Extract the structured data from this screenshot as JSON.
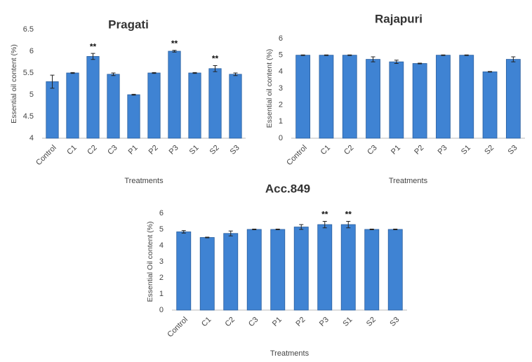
{
  "chart_data": [
    {
      "type": "bar",
      "title": "Pragati",
      "x_label": "Treatments",
      "y_label": "Essential oil content (%)",
      "categories": [
        "Control",
        "C1",
        "C2",
        "C3",
        "P1",
        "P2",
        "P3",
        "S1",
        "S2",
        "S3"
      ],
      "values": [
        5.3,
        5.5,
        5.88,
        5.47,
        5.0,
        5.5,
        6.0,
        5.5,
        5.6,
        5.47
      ],
      "errors": [
        0.15,
        0.01,
        0.07,
        0.03,
        0.01,
        0.01,
        0.02,
        0.01,
        0.07,
        0.03
      ],
      "color": "#3f83d3",
      "ylim": [
        4,
        6.5
      ],
      "yticks": [
        4,
        4.5,
        5,
        5.5,
        6,
        6.5
      ],
      "grid": false,
      "annotations": [
        {
          "text": "**",
          "category": "C2"
        },
        {
          "text": "**",
          "category": "P3"
        },
        {
          "text": "**",
          "category": "S2"
        }
      ]
    },
    {
      "type": "bar",
      "title": "Rajapuri",
      "x_label": "Treatments",
      "y_label": "Essential oil content (%)",
      "categories": [
        "Control",
        "C1",
        "C2",
        "C3",
        "P1",
        "P2",
        "P3",
        "S1",
        "S2",
        "S3"
      ],
      "values": [
        5.0,
        5.0,
        5.0,
        4.75,
        4.6,
        4.5,
        5.0,
        5.0,
        4.0,
        4.75
      ],
      "errors": [
        0.02,
        0.02,
        0.02,
        0.15,
        0.1,
        0.02,
        0.02,
        0.02,
        0.02,
        0.15
      ],
      "color": "#3f83d3",
      "ylim": [
        0,
        6
      ],
      "yticks": [
        0,
        1,
        2,
        3,
        4,
        5,
        6
      ],
      "grid": false,
      "annotations": []
    },
    {
      "type": "bar",
      "title": "Acc.849",
      "x_label": "Treatments",
      "y_label": "Essential Oil content (%)",
      "categories": [
        "Control",
        "C1",
        "C2",
        "C3",
        "P1",
        "P2",
        "P3",
        "S1",
        "S2",
        "S3"
      ],
      "values": [
        4.85,
        4.5,
        4.75,
        5.0,
        5.0,
        5.15,
        5.3,
        5.3,
        5.0,
        5.0
      ],
      "errors": [
        0.08,
        0.02,
        0.15,
        0.02,
        0.02,
        0.15,
        0.2,
        0.2,
        0.02,
        0.02
      ],
      "color": "#3f83d3",
      "ylim": [
        0,
        6
      ],
      "yticks": [
        0,
        1,
        2,
        3,
        4,
        5,
        6
      ],
      "grid": false,
      "annotations": [
        {
          "text": "**",
          "category": "P3"
        },
        {
          "text": "**",
          "category": "S1"
        }
      ]
    }
  ]
}
